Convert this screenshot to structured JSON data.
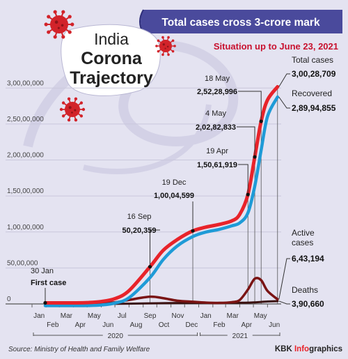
{
  "headline": "Total cases cross 3-crore mark",
  "subtitle": "Situation up to June 23, 2021",
  "title_lines": [
    "India",
    "Corona",
    "Trajectory"
  ],
  "source": "Source: Ministry of Health and Family Welfare",
  "credit": {
    "prefix": "KBK ",
    "highlight": "Info",
    "suffix": "graphics"
  },
  "colors": {
    "background": "#e4e3f1",
    "banner": "#4a4a9c",
    "subtitle": "#c8102e",
    "total": "#e8232a",
    "recovered": "#1e9bd7",
    "active": "#7a1414",
    "deaths": "#3a1010",
    "virus": "#d2232a",
    "grid": "#c9c7dc"
  },
  "chart_data": {
    "type": "line",
    "x_tick_labels": [
      "Jan",
      "Feb",
      "Mar",
      "Apr",
      "May",
      "Jun",
      "Jul",
      "Aug",
      "Sep",
      "Oct",
      "Nov",
      "Dec",
      "Jan",
      "Feb",
      "Mar",
      "Apr",
      "May",
      "Jun"
    ],
    "year_labels": [
      "2020",
      "2021"
    ],
    "y_tick_labels": [
      "3,00,00,000",
      "2,50,00,000",
      "2,00,00,000",
      "1,50,00,000",
      "1,00,00,000",
      "50,00,000",
      "0"
    ],
    "ylim": [
      0,
      30800000
    ],
    "x": [
      "2020-01-30",
      "2020-03-01",
      "2020-04-01",
      "2020-05-01",
      "2020-06-01",
      "2020-07-01",
      "2020-08-01",
      "2020-09-16",
      "2020-10-15",
      "2020-11-15",
      "2020-12-19",
      "2021-01-15",
      "2021-02-15",
      "2021-03-15",
      "2021-04-01",
      "2021-04-19",
      "2021-05-04",
      "2021-05-18",
      "2021-06-01",
      "2021-06-23"
    ],
    "series": [
      {
        "key": "total",
        "values": [
          1,
          3,
          1600,
          35000,
          190000,
          585000,
          1700000,
          5020359,
          7300000,
          8800000,
          10004599,
          10500000,
          10900000,
          11400000,
          12300000,
          15061919,
          20282833,
          25228996,
          28200000,
          30028709
        ]
      },
      {
        "key": "recovered",
        "values": [
          0,
          0,
          200,
          10000,
          90000,
          360000,
          1100000,
          3900000,
          6400000,
          8300000,
          9600000,
          10200000,
          10600000,
          11100000,
          11500000,
          12900000,
          16600000,
          21600000,
          26300000,
          28994855
        ]
      },
      {
        "key": "active",
        "values": [
          1,
          3,
          1400,
          24000,
          95000,
          220000,
          560000,
          1000000,
          800000,
          450000,
          300000,
          190000,
          140000,
          250000,
          550000,
          2000000,
          3500000,
          3300000,
          1800000,
          643194
        ]
      },
      {
        "key": "deaths",
        "values": [
          0,
          0,
          30,
          1100,
          5400,
          17400,
          36500,
          82066,
          111000,
          130000,
          145136,
          152000,
          155000,
          159000,
          163000,
          178000,
          222000,
          278000,
          335000,
          390660
        ]
      }
    ],
    "annotations": [
      {
        "date_label": "30 Jan",
        "value_label": "First case",
        "x": "2020-01-30",
        "y": 1
      },
      {
        "date_label": "16 Sep",
        "value_label": "50,20,359",
        "x": "2020-09-16",
        "y": 5020359
      },
      {
        "date_label": "19 Dec",
        "value_label": "1,00,04,599",
        "x": "2020-12-19",
        "y": 10004599
      },
      {
        "date_label": "19 Apr",
        "value_label": "1,50,61,919",
        "x": "2021-04-19",
        "y": 15061919
      },
      {
        "date_label": "4 May",
        "value_label": "2,02,82,833",
        "x": "2021-05-04",
        "y": 20282833
      },
      {
        "date_label": "18 May",
        "value_label": "2,52,28,996",
        "x": "2021-05-18",
        "y": 25228996
      }
    ],
    "end_labels": [
      {
        "label": "Total cases",
        "value": "3,00,28,709"
      },
      {
        "label": "Recovered",
        "value": "2,89,94,855"
      },
      {
        "label_lines": [
          "Active",
          "cases"
        ],
        "value": "6,43,194"
      },
      {
        "label": "Deaths",
        "value": "3,90,660"
      }
    ]
  }
}
